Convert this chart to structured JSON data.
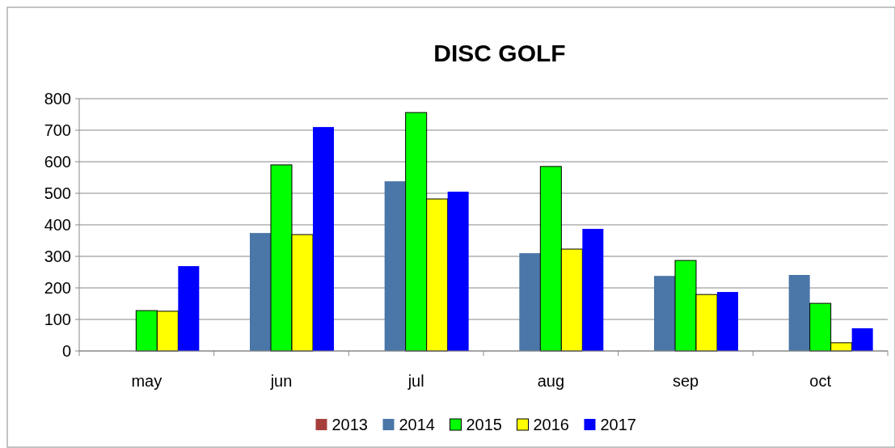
{
  "chart_data": {
    "type": "bar",
    "title": "DISC GOLF",
    "categories": [
      "may",
      "jun",
      "jul",
      "aug",
      "sep",
      "oct"
    ],
    "series": [
      {
        "name": "2013",
        "color": "#a5403c",
        "values": [
          null,
          null,
          null,
          null,
          null,
          null
        ]
      },
      {
        "name": "2014",
        "color": "#4a76a8",
        "values": [
          null,
          374,
          538,
          310,
          238,
          241
        ]
      },
      {
        "name": "2015",
        "color": "#00ff00",
        "values": [
          128,
          590,
          756,
          585,
          287,
          151
        ]
      },
      {
        "name": "2016",
        "color": "#ffff00",
        "values": [
          126,
          369,
          482,
          323,
          179,
          26
        ]
      },
      {
        "name": "2017",
        "color": "#0000ff",
        "values": [
          269,
          710,
          505,
          387,
          187,
          72
        ]
      }
    ],
    "ylim": [
      0,
      800
    ],
    "yticks": [
      0,
      100,
      200,
      300,
      400,
      500,
      600,
      700,
      800
    ],
    "grid": "y",
    "legend": "bottom"
  }
}
